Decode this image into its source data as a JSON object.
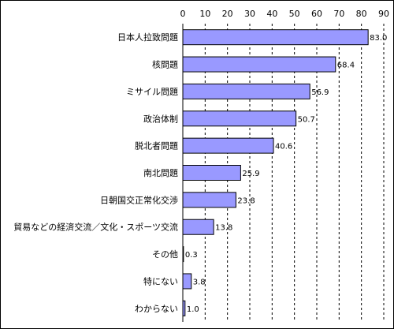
{
  "chart_data": {
    "type": "bar",
    "orientation": "horizontal",
    "title": "",
    "xlabel": "",
    "ylabel": "",
    "xlim": [
      0,
      90
    ],
    "x_ticks": [
      0,
      10,
      20,
      30,
      40,
      50,
      60,
      70,
      80,
      90
    ],
    "tick_position": "top",
    "grid": "vertical-dashed",
    "legend": "none",
    "categories": [
      "日本人拉致問題",
      "核問題",
      "ミサイル問題",
      "政治体制",
      "脱北者問題",
      "南北問題",
      "日朝国交正常化交渉",
      "貿易などの経済交流／文化・スポーツ交流",
      "その他",
      "特にない",
      "わからない"
    ],
    "values": [
      83.0,
      68.4,
      56.9,
      50.7,
      40.6,
      25.9,
      23.8,
      13.8,
      0.3,
      3.8,
      1.0
    ],
    "value_labels": [
      "83.0",
      "68.4",
      "56.9",
      "50.7",
      "40.6",
      "25.9",
      "23.8",
      "13.8",
      "0.3",
      "3.8",
      "1.0"
    ],
    "colors": {
      "bar_fill": "#9999ff",
      "bar_stroke": "#000000",
      "grid": "#000000",
      "frame": "#000000"
    }
  }
}
